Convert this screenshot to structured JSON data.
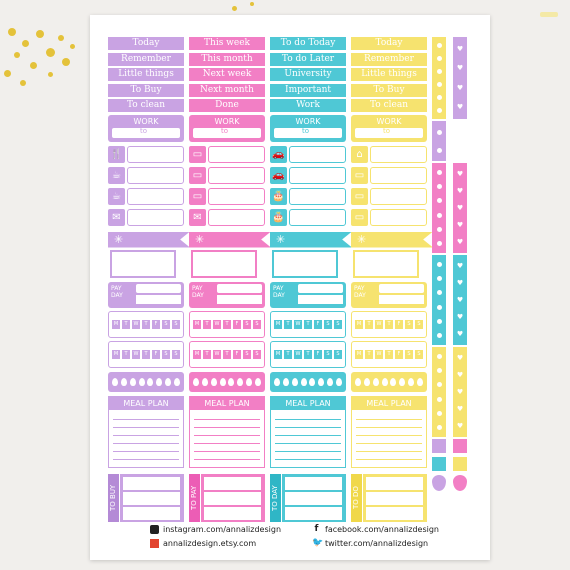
{
  "columns": [
    {
      "color": "#c9a3e3",
      "dark": "#b48ad6",
      "banners": [
        "Today",
        "Remember",
        "Little things",
        "To Buy",
        "To clean"
      ],
      "vertical": "TO BUY"
    },
    {
      "color": "#f27fc5",
      "dark": "#ec5db5",
      "banners": [
        "This week",
        "This month",
        "Next week",
        "Next month",
        "Done"
      ],
      "vertical": "TO PAY"
    },
    {
      "color": "#4fc8d5",
      "dark": "#2fb6c6",
      "banners": [
        "To do Today",
        "To do Later",
        "University",
        "Important",
        "Work"
      ],
      "vertical": "TO DAY"
    },
    {
      "color": "#f6e36f",
      "dark": "#f0d84a",
      "banners": [
        "Today",
        "Remember",
        "Little things",
        "To Buy",
        "To clean"
      ],
      "vertical": "TO DO"
    }
  ],
  "work_label": "WORK",
  "to_label": "to",
  "pay_label_top": "PAY",
  "pay_label_bottom": "DAY",
  "weekdays": [
    "M",
    "T",
    "W",
    "T",
    "F",
    "S",
    "S"
  ],
  "meal_label": "MEAL PLAN",
  "footer": {
    "instagram": "instagram.com/annalizdesign",
    "etsy": "annalizdesign.etsy.com",
    "facebook": "facebook.com/annalizdesign",
    "twitter": "twitter.com/annalizdesign"
  }
}
